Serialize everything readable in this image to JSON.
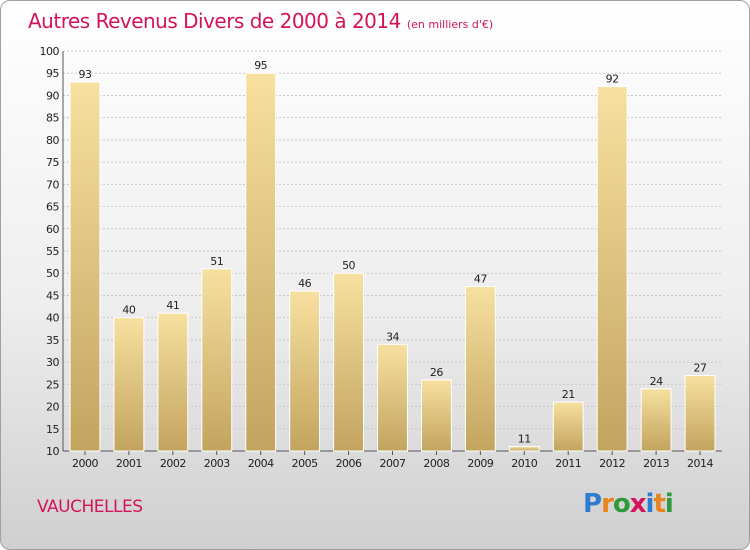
{
  "title": "Autres Revenus Divers de 2000 à 2014",
  "title_unit": "(en milliers d'€)",
  "commune": "VAUCHELLES",
  "logo": {
    "text": "Proxiti",
    "letters": [
      {
        "ch": "P",
        "color": "#2f7bd0"
      },
      {
        "ch": "r",
        "color": "#e8841b"
      },
      {
        "ch": "o",
        "color": "#2f9a3c"
      },
      {
        "ch": "x",
        "color": "#d4145a"
      },
      {
        "ch": "i",
        "color": "#2f7bd0"
      },
      {
        "ch": "t",
        "color": "#e8841b"
      },
      {
        "ch": "i",
        "color": "#2f9a3c"
      }
    ]
  },
  "colors": {
    "title": "#d4145a",
    "bar_light": "#f7e0a0",
    "bar_dark": "#c2a45e",
    "grid": "#c8c8c8",
    "axis": "#555555"
  },
  "chart_data": {
    "type": "bar",
    "categories": [
      "2000",
      "2001",
      "2002",
      "2003",
      "2004",
      "2005",
      "2006",
      "2007",
      "2008",
      "2009",
      "2010",
      "2011",
      "2012",
      "2013",
      "2014"
    ],
    "values": [
      93,
      40,
      41,
      51,
      95,
      46,
      50,
      34,
      26,
      47,
      11,
      21,
      92,
      24,
      27
    ],
    "ylim": [
      10,
      100
    ],
    "ytick_step": 5,
    "grid": true,
    "data_labels": true
  }
}
